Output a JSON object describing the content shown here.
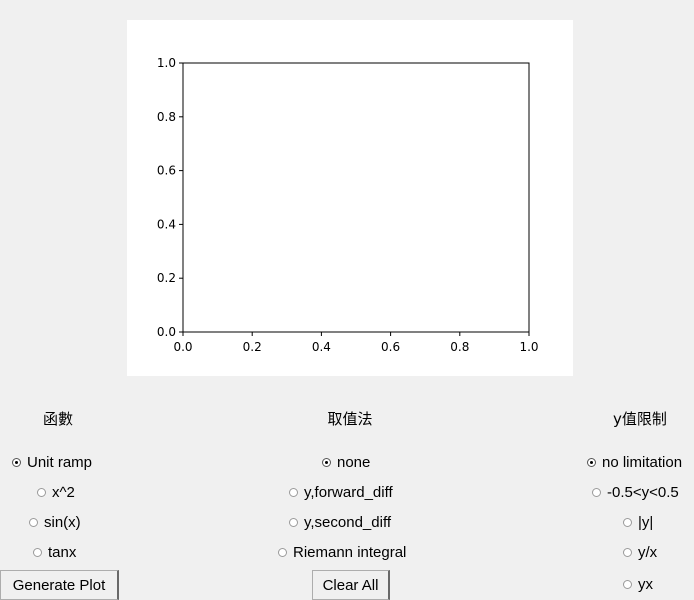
{
  "chart_data": {
    "type": "line",
    "title": "",
    "xlabel": "",
    "ylabel": "",
    "xlim": [
      0.0,
      1.0
    ],
    "ylim": [
      0.0,
      1.0
    ],
    "x_ticks": [
      "0.0",
      "0.2",
      "0.4",
      "0.6",
      "0.8",
      "1.0"
    ],
    "y_ticks": [
      "0.0",
      "0.2",
      "0.4",
      "0.6",
      "0.8",
      "1.0"
    ],
    "series": [],
    "grid": false
  },
  "function_group": {
    "title": "函數",
    "options": [
      "Unit ramp",
      "x^2",
      "sin(x)",
      "tanx"
    ],
    "selected": "Unit ramp"
  },
  "method_group": {
    "title": "取值法",
    "options": [
      "none",
      "y,forward_diff",
      "y,second_diff",
      "Riemann integral"
    ],
    "selected": "none"
  },
  "limit_group": {
    "title": "y值限制",
    "options": [
      "no limitation",
      "-0.5<y<0.5",
      "|y|",
      "y/x",
      "yx"
    ],
    "selected": "no limitation"
  },
  "buttons": {
    "generate": "Generate Plot",
    "clear": "Clear All"
  }
}
